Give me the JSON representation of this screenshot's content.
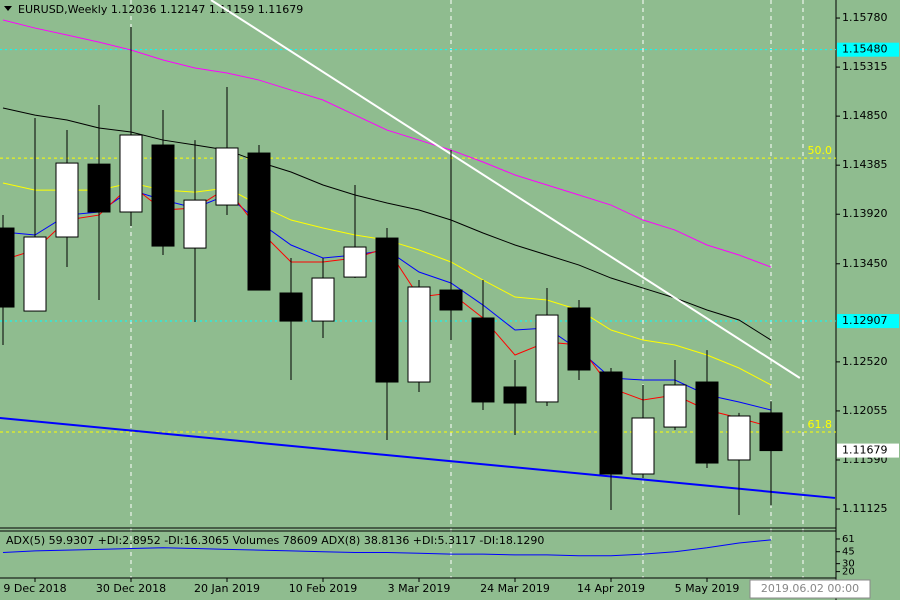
{
  "chart_data": {
    "type": "candlestick",
    "title": "EURUSD,Weekly  1.12036 1.12147 1.11159 1.11679",
    "categories": [
      null,
      "9 Dec 2018",
      null,
      null,
      "30 Dec 2018",
      null,
      null,
      "20 Jan 2019",
      null,
      null,
      "10 Feb 2019",
      null,
      null,
      "3 Mar 2019",
      null,
      null,
      "24 Mar 2019",
      null,
      null,
      "14 Apr 2019",
      null,
      null,
      "5 May 2019",
      null,
      null
    ],
    "open": [
      1.13789,
      1.13002,
      1.13704,
      1.14395,
      1.13941,
      1.14576,
      1.13599,
      1.14007,
      1.145,
      1.13173,
      1.12907,
      1.13324,
      1.13694,
      1.12329,
      1.13201,
      1.12936,
      1.12282,
      1.1214,
      1.13031,
      1.12424,
      1.11457,
      1.11902,
      1.12329,
      1.1159,
      1.12036
    ],
    "high": [
      1.13912,
      1.14832,
      1.14718,
      1.14955,
      1.15695,
      1.14908,
      1.14623,
      1.15126,
      1.14576,
      1.13505,
      1.13505,
      1.14197,
      1.13789,
      1.13296,
      1.14529,
      1.13296,
      1.12538,
      1.1322,
      1.13107,
      1.12462,
      1.12301,
      1.12538,
      1.12632,
      1.12036,
      1.12147
    ],
    "low": [
      1.1268,
      1.13002,
      1.13419,
      1.13107,
      1.13808,
      1.13533,
      1.12898,
      1.13912,
      1.13201,
      1.12348,
      1.12746,
      1.13315,
      1.11779,
      1.12234,
      1.12727,
      1.12064,
      1.11827,
      1.12102,
      1.12348,
      1.11116,
      1.11419,
      1.11874,
      1.11514,
      1.11068,
      1.11159
    ],
    "close": [
      1.1304,
      1.13704,
      1.14405,
      1.13941,
      1.14671,
      1.13618,
      1.14054,
      1.14548,
      1.13201,
      1.12907,
      1.13315,
      1.13609,
      1.12329,
      1.1323,
      1.13012,
      1.1214,
      1.1213,
      1.12964,
      1.12443,
      1.11457,
      1.11988,
      1.12301,
      1.11561,
      1.12007,
      1.11679
    ],
    "up_color": "#ffffff",
    "down_color": "#000000",
    "series": [
      {
        "color": "#ff00ff",
        "values": [
          1.15761,
          1.15685,
          1.15619,
          1.15552,
          1.15477,
          1.15382,
          1.15306,
          1.15259,
          1.15192,
          1.15097,
          1.15003,
          1.1486,
          1.14718,
          1.14623,
          1.14528,
          1.14415,
          1.14292,
          1.14197,
          1.14102,
          1.14007,
          1.13865,
          1.1377,
          1.13628,
          1.13533,
          1.13419
        ]
      },
      {
        "color": "#000000",
        "values": [
          1.14927,
          1.1486,
          1.14813,
          1.14737,
          1.14699,
          1.14623,
          1.14576,
          1.14528,
          1.14415,
          1.1432,
          1.14197,
          1.14102,
          1.14026,
          1.1396,
          1.13865,
          1.13742,
          1.13628,
          1.13533,
          1.13438,
          1.13315,
          1.1322,
          1.13126,
          1.13012,
          1.12917,
          1.12727
        ]
      },
      {
        "color": "#ffff00",
        "values": [
          1.14216,
          1.14149,
          1.14149,
          1.14149,
          1.14216,
          1.14149,
          1.1413,
          1.14168,
          1.14007,
          1.13865,
          1.13789,
          1.13723,
          1.13675,
          1.13581,
          1.13467,
          1.13296,
          1.13135,
          1.13107,
          1.13012,
          1.12822,
          1.12727,
          1.1268,
          1.12585,
          1.12462,
          1.12301
        ]
      },
      {
        "color": "#0000ff",
        "values": [
          1.13751,
          1.13723,
          1.13912,
          1.13941,
          1.14149,
          1.14055,
          1.13979,
          1.14102,
          1.13846,
          1.13628,
          1.13505,
          1.13533,
          1.13581,
          1.13372,
          1.13268,
          1.13059,
          1.12822,
          1.12841,
          1.12633,
          1.12367,
          1.12348,
          1.12348,
          1.12206,
          1.1214,
          1.12064
        ]
      },
      {
        "color": "#ff0000",
        "values": [
          1.13486,
          1.13581,
          1.13865,
          1.13912,
          1.14197,
          1.1396,
          1.13979,
          1.14168,
          1.1377,
          1.13467,
          1.13467,
          1.13505,
          1.136,
          1.13135,
          1.13173,
          1.12936,
          1.12585,
          1.12708,
          1.1268,
          1.12272,
          1.12159,
          1.12206,
          1.12064,
          1.11988,
          1.11903
        ]
      }
    ],
    "trendlines": [
      {
        "color": "#ffffff",
        "from": [
          6.5,
          1.15951
        ],
        "to": [
          24.9,
          1.12367
        ]
      },
      {
        "color": "#0000ff",
        "from": [
          -0.1,
          1.11988
        ],
        "to": [
          26.0,
          1.1123
        ]
      }
    ],
    "levels": [
      {
        "value": 1.14452,
        "label": "50.0",
        "color": "#ffff00"
      },
      {
        "value": 1.11855,
        "label": "61.8",
        "color": "#ffff00"
      }
    ],
    "price_markers": [
      {
        "value": 1.1548,
        "label": "1.15480",
        "color": "#00ffff"
      },
      {
        "value": 1.12907,
        "label": "1.12907",
        "color": "#00ffff"
      },
      {
        "value": 1.11679,
        "label": "1.11679",
        "color": "#ffffff"
      }
    ],
    "ylim": [
      1.10945,
      1.15951
    ],
    "yticks": [
      {
        "value": 1.1578,
        "label": "1.15780"
      },
      {
        "value": 1.15315,
        "label": "1.15315"
      },
      {
        "value": 1.1485,
        "label": "1.14850"
      },
      {
        "value": 1.14385,
        "label": "1.14385"
      },
      {
        "value": 1.1392,
        "label": "1.13920"
      },
      {
        "value": 1.1345,
        "label": "1.13450"
      },
      {
        "value": 1.1252,
        "label": "1.12520"
      },
      {
        "value": 1.12055,
        "label": "1.12055"
      },
      {
        "value": 1.1159,
        "label": "1.11590"
      },
      {
        "value": 1.11125,
        "label": "1.11125"
      }
    ],
    "indicator": {
      "label": "ADX(5) 59.9307 +DI:2.8952 -DI:16.3065 Volumes 78609 ADX(8) 38.8136 +DI:5.3117 -DI:18.1290",
      "color": "#0000ff",
      "values": [
        44,
        46,
        47,
        48,
        49,
        50,
        49,
        48,
        47,
        46,
        45,
        44,
        44,
        43,
        42,
        42,
        41,
        41,
        40,
        40,
        42,
        45,
        50,
        56,
        59.9307
      ],
      "ylim": [
        12,
        71
      ],
      "yticks": [
        61,
        45,
        30,
        20
      ]
    },
    "cursor_label": "2019.06.02 00:00"
  }
}
